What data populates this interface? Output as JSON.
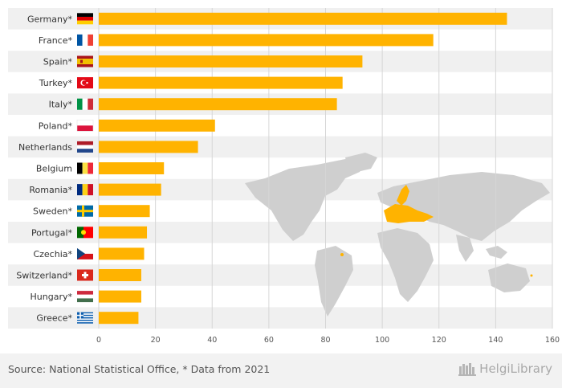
{
  "chart_data": {
    "type": "bar",
    "orientation": "horizontal",
    "categories": [
      "Germany*",
      "France*",
      "Spain*",
      "Turkey*",
      "Italy*",
      "Poland*",
      "Netherlands",
      "Belgium",
      "Romania*",
      "Sweden*",
      "Portugal*",
      "Czechia*",
      "Switzerland*",
      "Hungary*",
      "Greece*"
    ],
    "flags": [
      "germany-flag",
      "france-flag",
      "spain-flag",
      "turkey-flag",
      "italy-flag",
      "poland-flag",
      "netherlands-flag",
      "belgium-flag",
      "romania-flag",
      "sweden-flag",
      "portugal-flag",
      "czechia-flag",
      "switzerland-flag",
      "hungary-flag",
      "greece-flag"
    ],
    "values": [
      144,
      118,
      93,
      86,
      84,
      41,
      35,
      23,
      22,
      18,
      17,
      16,
      15,
      15,
      14
    ],
    "xlim": [
      0,
      160
    ],
    "xticks": [
      0,
      20,
      40,
      60,
      80,
      100,
      120,
      140,
      160
    ],
    "grid": true,
    "bar_color": "#FFB300",
    "background_decoration": "world-map-icon"
  },
  "footer": {
    "source": "Source: National Statistical Office, * Data from 2021",
    "brand": "HelgiLibrary"
  }
}
